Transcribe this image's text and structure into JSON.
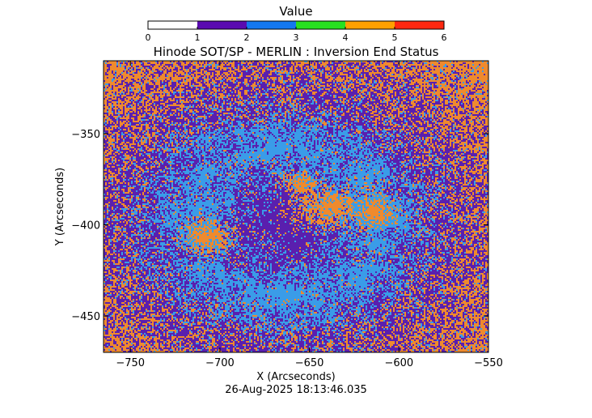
{
  "chart_data": {
    "type": "heatmap",
    "title": "Hinode SOT/SP - MERLIN : Inversion End Status",
    "xlabel": "X (Arcseconds)",
    "ylabel": "Y (Arcseconds)",
    "xlim": [
      -765,
      -550
    ],
    "ylim": [
      -470,
      -310
    ],
    "xticks": [
      -750,
      -700,
      -650,
      -600,
      -550
    ],
    "xtick_labels": [
      "−750",
      "−700",
      "−650",
      "−600",
      "−550"
    ],
    "yticks": [
      -350,
      -400,
      -450
    ],
    "ytick_labels": [
      "−350",
      "−400",
      "−450"
    ],
    "colorbar": {
      "title": "Value",
      "range": [
        0,
        6
      ],
      "ticks": [
        "0",
        "1",
        "2",
        "3",
        "4",
        "5",
        "6"
      ],
      "colors": [
        "#ffffff",
        "#5a0bb0",
        "#1478f0",
        "#28e020",
        "#ffa000",
        "#ff2810"
      ]
    },
    "pixel_colors": {
      "purple": "#5a1fae",
      "blue": "#3a9ce8",
      "orange": "#ee8a2e"
    },
    "timestamp": "26-Aug-2025 18:13:46.035"
  }
}
